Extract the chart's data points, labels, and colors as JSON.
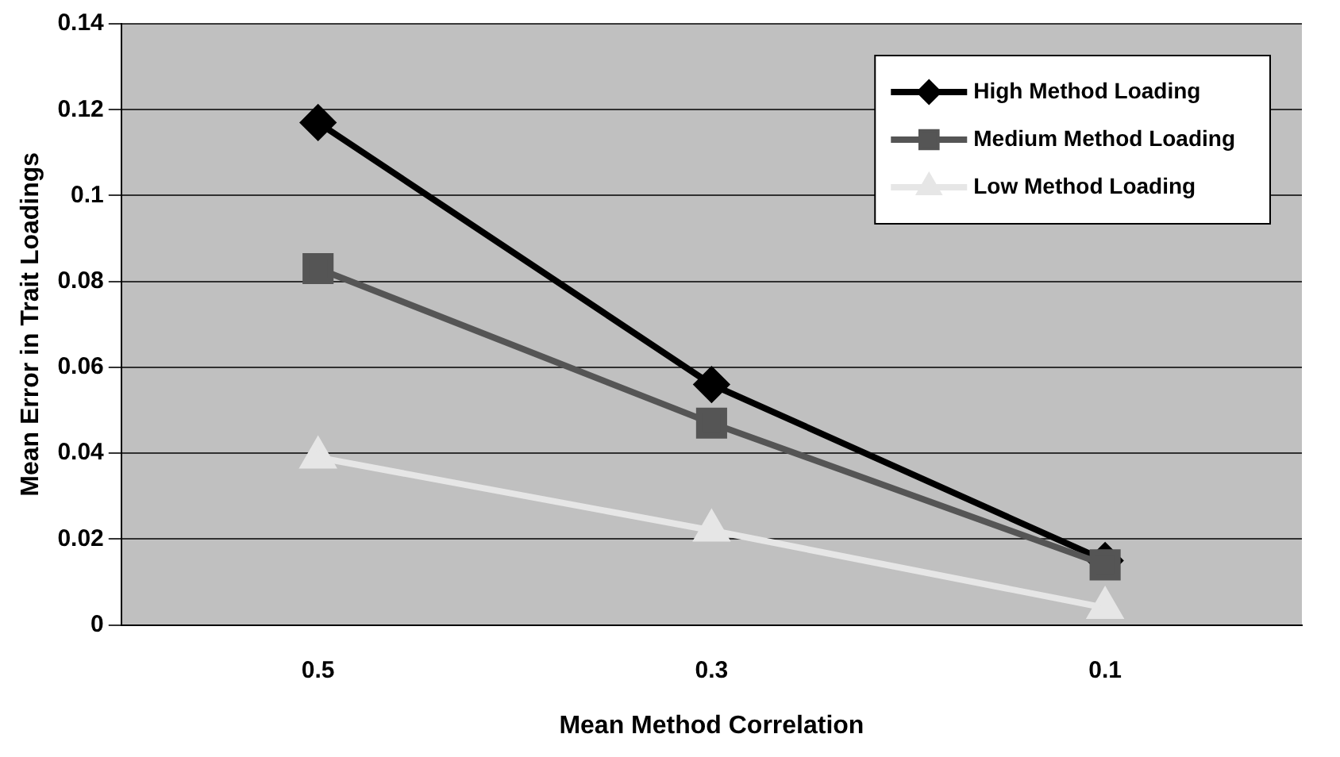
{
  "chart_data": {
    "type": "line",
    "xlabel": "Mean Method Correlation",
    "ylabel": "Mean Error in Trait Loadings",
    "categories": [
      "0.5",
      "0.3",
      "0.1"
    ],
    "series": [
      {
        "name": "High Method Loading",
        "color": "#000000",
        "marker": "diamond",
        "values": [
          0.117,
          0.056,
          0.015
        ]
      },
      {
        "name": "Medium Method Loading",
        "color": "#555555",
        "marker": "square",
        "values": [
          0.083,
          0.047,
          0.014
        ]
      },
      {
        "name": "Low Method Loading",
        "color": "#e6e6e6",
        "marker": "triangle",
        "values": [
          0.039,
          0.022,
          0.004
        ]
      }
    ],
    "ylim": [
      0,
      0.14
    ],
    "yticks": [
      0,
      0.02,
      0.04,
      0.06,
      0.08,
      0.1,
      0.12,
      0.14
    ],
    "grid": "y",
    "legend": "top right"
  }
}
